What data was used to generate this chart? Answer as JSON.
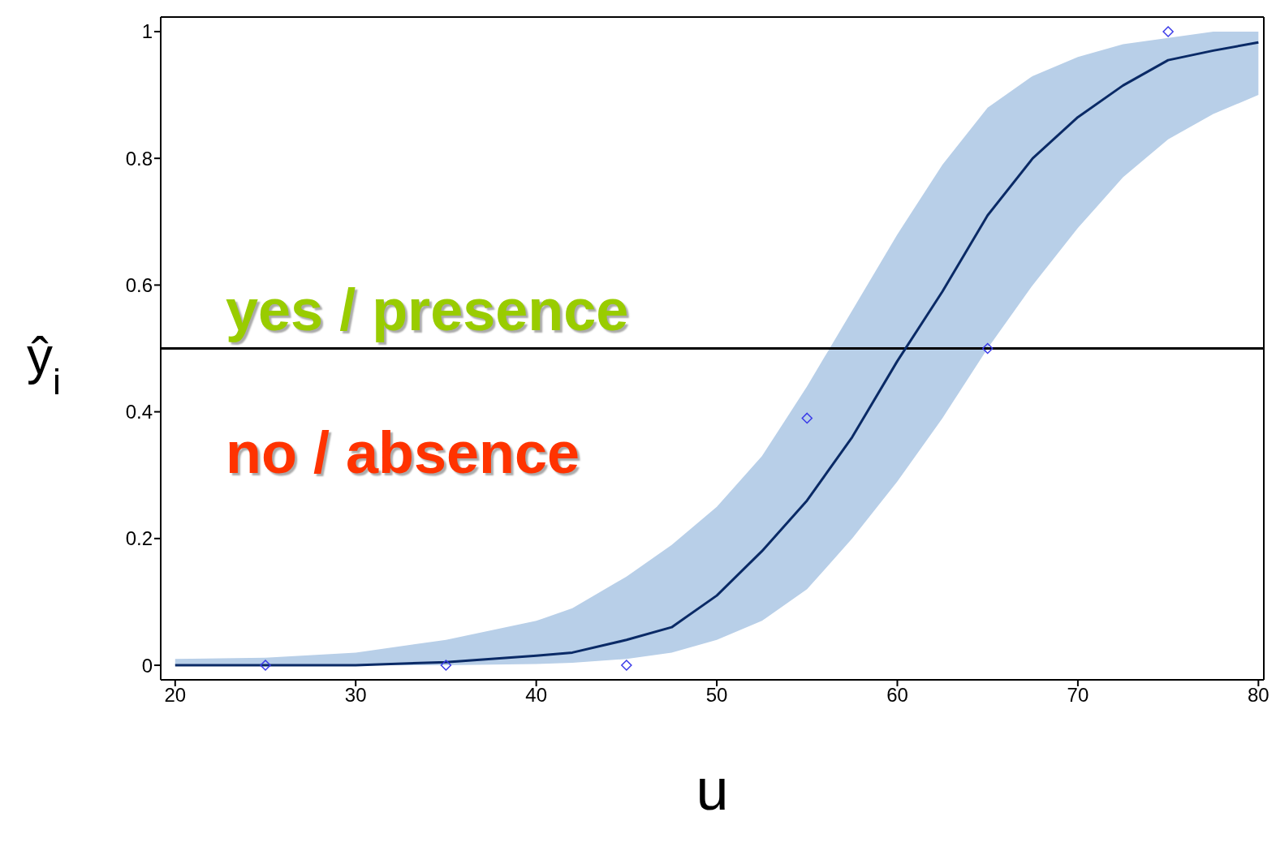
{
  "chart_data": {
    "type": "line",
    "xlabel": "u",
    "ylabel": "ŷ$_{i}$",
    "xlim": [
      19.2,
      80.3
    ],
    "ylim": [
      -0.023,
      1.023
    ],
    "xticks": [
      20,
      30,
      40,
      50,
      60,
      70,
      80
    ],
    "yticks": [
      0,
      0.2,
      0.4,
      0.6,
      0.8,
      1
    ],
    "grid": false,
    "legend": false,
    "annotations": [
      "yes / presence",
      "no / absence"
    ],
    "ref_lines": [
      {
        "axis": "y",
        "value": 0.5,
        "color": "#000000"
      }
    ],
    "series": [
      {
        "color": "#0a2a66",
        "marker": "none",
        "line_style": "solid",
        "x": [
          20,
          25,
          30,
          35,
          40,
          42,
          45,
          47.5,
          50,
          52.5,
          55,
          57.5,
          60,
          62.5,
          65,
          67.5,
          70,
          72.5,
          75,
          77.5,
          80
        ],
        "values": [
          0,
          0,
          0,
          0.005,
          0.015,
          0.02,
          0.04,
          0.06,
          0.11,
          0.18,
          0.26,
          0.36,
          0.48,
          0.59,
          0.71,
          0.8,
          0.865,
          0.915,
          0.955,
          0.97,
          0.983
        ],
        "lower": [
          0,
          0,
          0,
          0,
          0.002,
          0.004,
          0.01,
          0.02,
          0.04,
          0.07,
          0.12,
          0.2,
          0.29,
          0.39,
          0.5,
          0.6,
          0.69,
          0.77,
          0.83,
          0.87,
          0.9
        ],
        "upper": [
          0.01,
          0.012,
          0.02,
          0.04,
          0.07,
          0.09,
          0.14,
          0.19,
          0.25,
          0.33,
          0.44,
          0.56,
          0.68,
          0.79,
          0.88,
          0.93,
          0.96,
          0.98,
          0.99,
          1,
          1
        ]
      },
      {
        "type": "scatter",
        "color": "#3a3ae8",
        "marker": "diamond",
        "x": [
          25,
          35,
          45,
          55,
          65,
          75
        ],
        "values": [
          0,
          0,
          0,
          0.39,
          0.5,
          1
        ]
      }
    ]
  }
}
